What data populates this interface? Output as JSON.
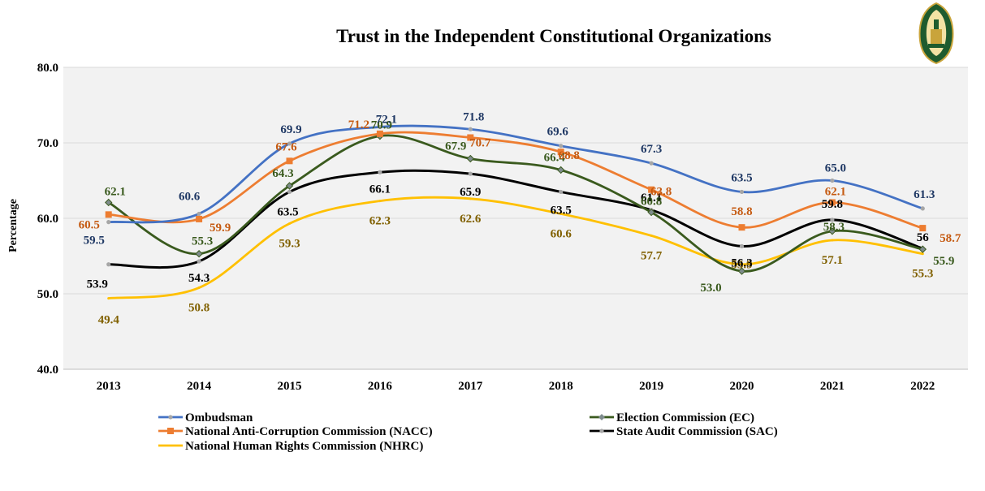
{
  "chart_data": {
    "type": "line",
    "title": "Trust in the Independent Constitutional Organizations",
    "xlabel": "",
    "ylabel": "Percentage",
    "ylim": [
      40,
      80
    ],
    "yticks": [
      "40.0",
      "50.0",
      "60.0",
      "70.0",
      "80.0"
    ],
    "grid": true,
    "legend_placement": "bottom",
    "categories": [
      "2013",
      "2014",
      "2015",
      "2016",
      "2017",
      "2018",
      "2019",
      "2020",
      "2021",
      "2022"
    ],
    "series": [
      {
        "name": "Ombudsman",
        "color": "#4472C4",
        "label_color": "#1F3864",
        "marker": "star",
        "values": [
          59.5,
          60.6,
          69.9,
          72.1,
          71.8,
          69.6,
          67.3,
          63.5,
          65.0,
          61.3
        ],
        "labels": [
          "59.5",
          "60.6",
          "69.9",
          "72.1",
          "71.8",
          "69.6",
          "67.3",
          "63.5",
          "65.0",
          "61.3"
        ]
      },
      {
        "name": "Election Commission (EC)",
        "color": "#3A5A1E",
        "label_color": "#3A5A1E",
        "marker": "diamond",
        "values": [
          62.1,
          55.3,
          64.3,
          70.9,
          67.9,
          66.4,
          60.8,
          53.0,
          58.3,
          55.9
        ],
        "labels": [
          "62.1",
          "55.3",
          "64.3",
          "70.9",
          "67.9",
          "66.4",
          "60.8",
          "53.0",
          "58.3",
          "55.9"
        ]
      },
      {
        "name": "National Anti-Corruption Commission (NACC)",
        "color": "#ED7D31",
        "label_color": "#C55A11",
        "marker": "square",
        "values": [
          60.5,
          59.9,
          67.6,
          71.2,
          70.7,
          68.8,
          63.8,
          58.8,
          62.1,
          58.7
        ],
        "labels": [
          "60.5",
          "59.9",
          "67.6",
          "71.2",
          "70.7",
          "68.8",
          "63.8",
          "58.8",
          "62.1",
          "58.7"
        ]
      },
      {
        "name": "State Audit Commission (SAC)",
        "color": "#000000",
        "label_color": "#000000",
        "marker": "star",
        "values": [
          53.9,
          54.3,
          63.5,
          66.1,
          65.9,
          63.5,
          61.1,
          56.3,
          59.8,
          56
        ],
        "labels": [
          "53.9",
          "54.3",
          "63.5",
          "66.1",
          "65.9",
          "63.5",
          "61.1",
          "56.3",
          "59.8",
          "56"
        ]
      },
      {
        "name": "National Human Rights Commission (NHRC)",
        "color": "#FFC000",
        "label_color": "#806000",
        "marker": "none",
        "values": [
          49.4,
          50.8,
          59.3,
          62.3,
          62.6,
          60.6,
          57.7,
          53.9,
          57.1,
          55.3
        ],
        "labels": [
          "49.4",
          "50.8",
          "59.3",
          "62.3",
          "62.6",
          "60.6",
          "57.7",
          "53.9",
          "57.1",
          "55.3"
        ]
      }
    ]
  },
  "logo": {
    "name": "emblem-logo"
  }
}
